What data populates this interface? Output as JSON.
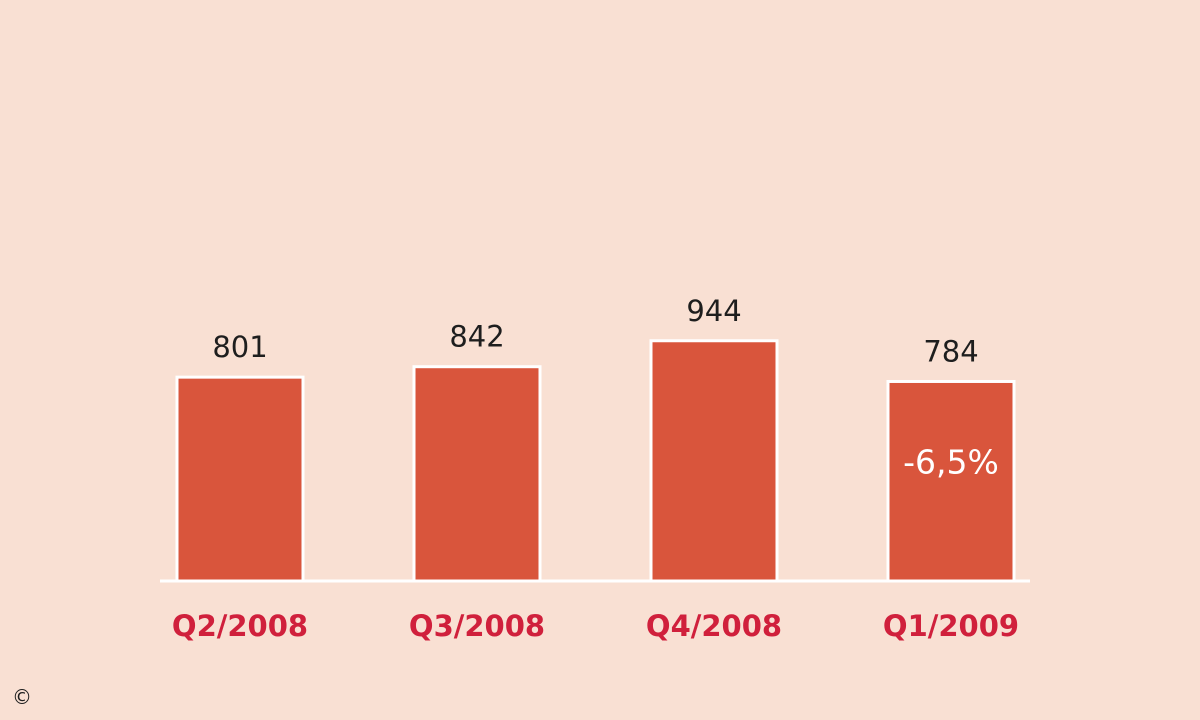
{
  "chart_data": {
    "type": "bar",
    "categories": [
      "Q2/2008",
      "Q3/2008",
      "Q4/2008",
      "Q1/2009"
    ],
    "values": [
      801,
      842,
      944,
      784
    ],
    "data_labels": [
      "801",
      "842",
      "944",
      "784"
    ],
    "annotations": [
      {
        "category": "Q1/2009",
        "text": "-6,5%"
      }
    ],
    "title": "",
    "xlabel": "",
    "ylabel": "",
    "grid": false,
    "legend": "none",
    "colors": {
      "background": "#f9e0d3",
      "bar": "#d9553c",
      "bar_border": "#ffffff",
      "category_text": "#d0203c",
      "value_text": "#1e1e1e",
      "annotation_text": "#ffffff"
    }
  },
  "footer": {
    "copyright_symbol": "©"
  }
}
